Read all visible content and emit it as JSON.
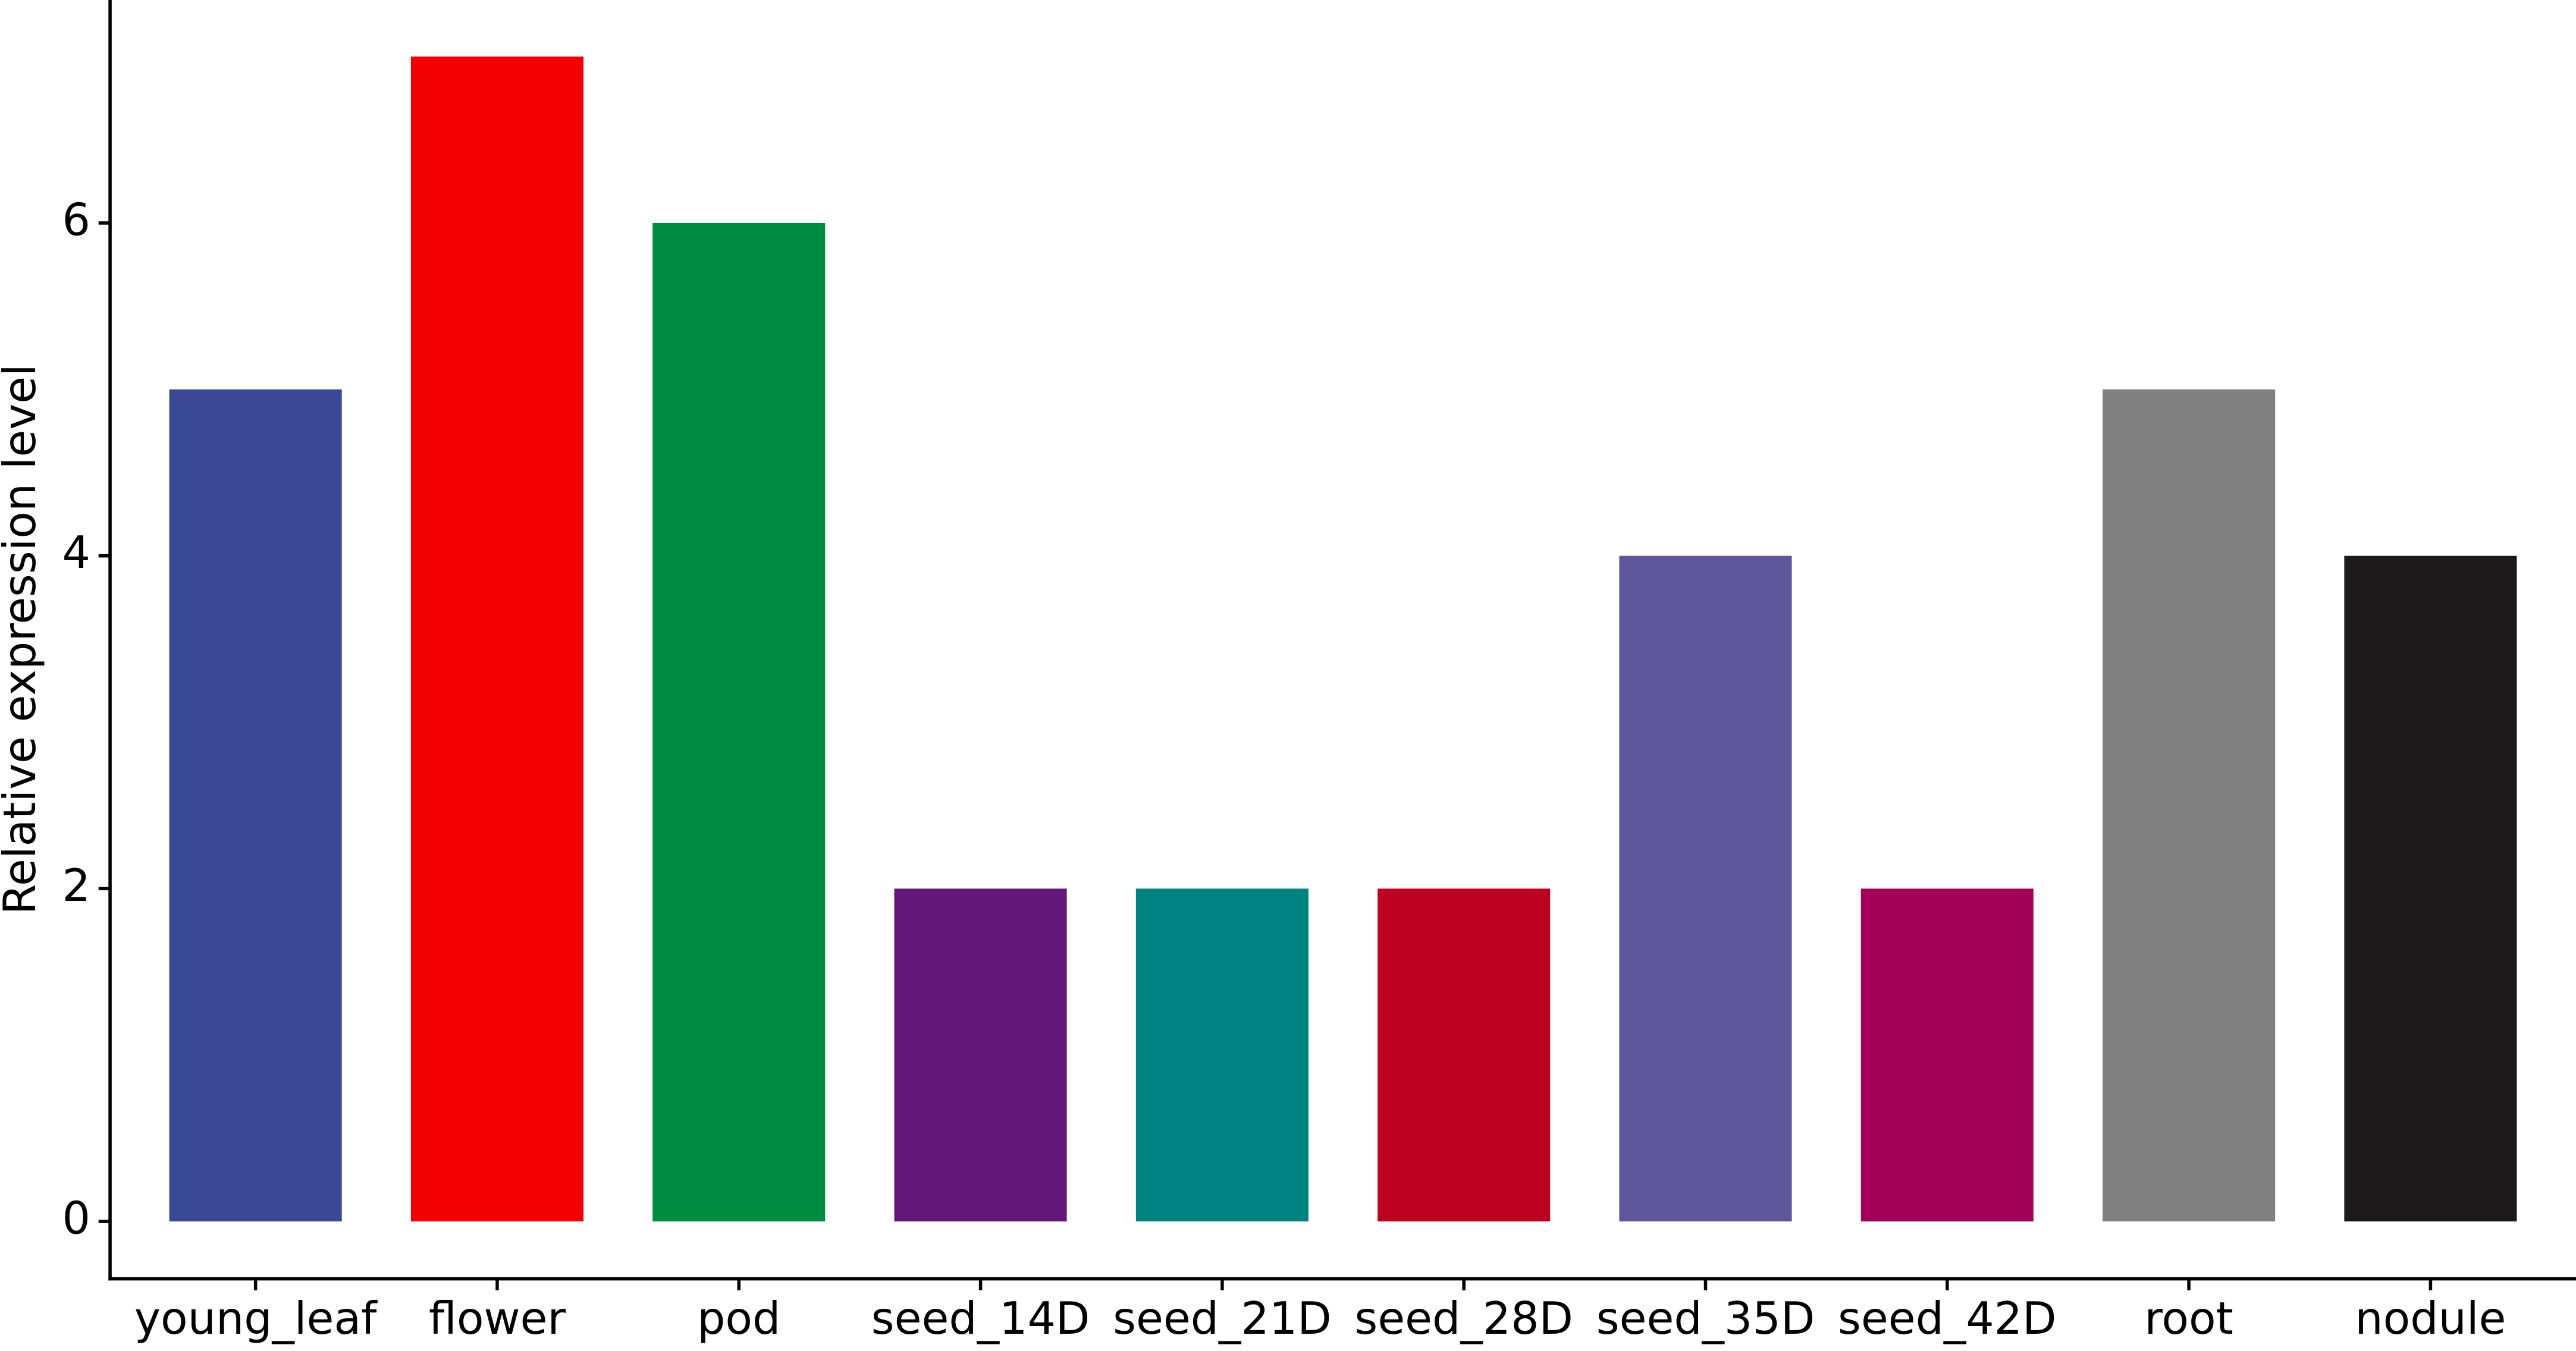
{
  "chart_data": {
    "type": "bar",
    "y_label": "Relative expression level",
    "categories": [
      "young_leaf",
      "flower",
      "pod",
      "seed_14D",
      "seed_21D",
      "seed_28D",
      "seed_35D",
      "seed_42D",
      "root",
      "nodule"
    ],
    "values": [
      5,
      7,
      6,
      2,
      2,
      2,
      4,
      2,
      5,
      4
    ],
    "colors": [
      "#3b4994",
      "#f20000",
      "#008b43",
      "#631879",
      "#008280",
      "#bb0021",
      "#5f559b",
      "#a20056",
      "#808080",
      "#1b1919"
    ],
    "ylim": [
      -0.345,
      7.34
    ],
    "yticks": [
      0,
      2,
      4,
      6
    ],
    "grid": false
  }
}
